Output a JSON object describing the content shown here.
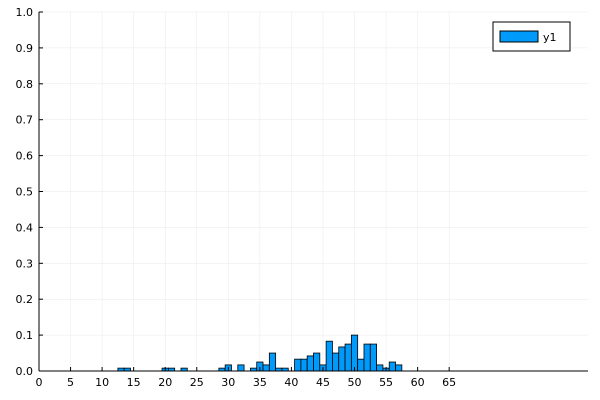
{
  "chart_data": {
    "type": "bar",
    "title": "",
    "xlabel": "",
    "ylabel": "",
    "xlim": [
      0,
      87
    ],
    "ylim": [
      0,
      1
    ],
    "bar_width": 1,
    "grid": true,
    "legend_position": "top-right",
    "x_ticks": [
      0,
      5,
      10,
      15,
      20,
      25,
      30,
      35,
      40,
      45,
      50,
      55,
      60,
      65
    ],
    "y_ticks": [
      0.0,
      0.1,
      0.2,
      0.3,
      0.4,
      0.5,
      0.6,
      0.7,
      0.8,
      0.9,
      1.0
    ],
    "x_tick_labels": [
      "0",
      "5",
      "10",
      "15",
      "20",
      "25",
      "30",
      "35",
      "40",
      "45",
      "50",
      "55",
      "60",
      "65"
    ],
    "y_tick_labels": [
      "0.0",
      "0.1",
      "0.2",
      "0.3",
      "0.4",
      "0.5",
      "0.6",
      "0.7",
      "0.8",
      "0.9",
      "1.0"
    ],
    "colors": {
      "bar": "#009AFA",
      "bar_stroke": "#000000",
      "grid": "#e8e8e8",
      "axis": "#000000"
    },
    "series": [
      {
        "name": "y1",
        "x": [
          13,
          14,
          20,
          21,
          23,
          29,
          30,
          32,
          34,
          35,
          36,
          37,
          38,
          39,
          41,
          42,
          43,
          44,
          45,
          46,
          47,
          48,
          49,
          50,
          51,
          52,
          53,
          54,
          55,
          56,
          57
        ],
        "values": [
          0.008,
          0.008,
          0.008,
          0.008,
          0.008,
          0.008,
          0.017,
          0.017,
          0.008,
          0.025,
          0.017,
          0.05,
          0.008,
          0.008,
          0.033,
          0.033,
          0.042,
          0.05,
          0.017,
          0.083,
          0.05,
          0.067,
          0.075,
          0.1,
          0.033,
          0.075,
          0.075,
          0.017,
          0.008,
          0.025,
          0.017
        ]
      }
    ]
  }
}
